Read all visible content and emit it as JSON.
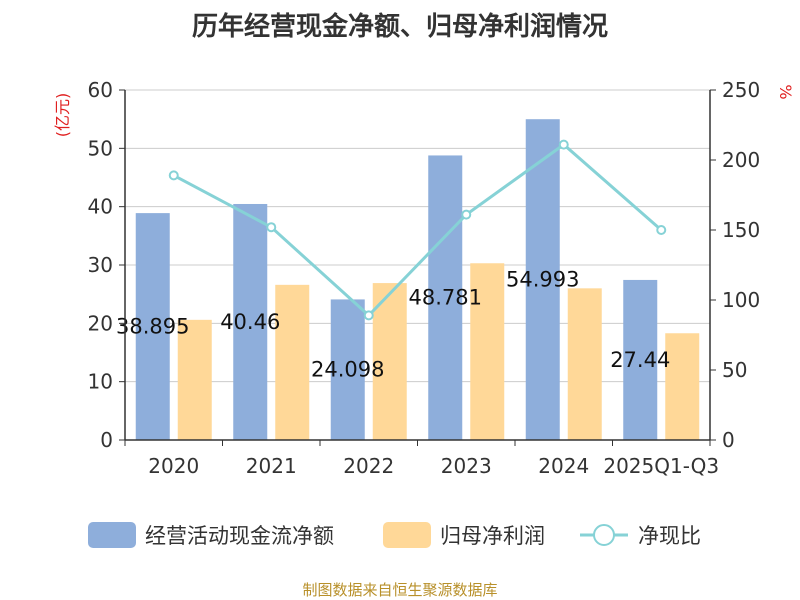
{
  "chart_data": {
    "type": "bar",
    "title": "历年经营现金净额、归母净利润情况",
    "categories": [
      "2020",
      "2021",
      "2022",
      "2023",
      "2024",
      "2025Q1-Q3"
    ],
    "left_unit": "(亿元)",
    "right_unit": "%",
    "ylim_left": [
      0,
      60
    ],
    "yticks_left": [
      "0",
      "10",
      "20",
      "30",
      "40",
      "50",
      "60"
    ],
    "ylim_right": [
      0,
      250
    ],
    "yticks_right": [
      "0",
      "50",
      "100",
      "150",
      "200",
      "250"
    ],
    "grid": true,
    "legend_position": "bottom",
    "series": [
      {
        "name": "经营活动现金流净额",
        "axis": "left",
        "type": "bar",
        "values": [
          38.895,
          40.46,
          24.098,
          48.781,
          54.993,
          27.44
        ],
        "labels": [
          "38.895",
          "40.46",
          "24.098",
          "48.781",
          "54.993",
          "27.44"
        ]
      },
      {
        "name": "归母净利润",
        "axis": "left",
        "type": "bar",
        "values": [
          20.6,
          26.6,
          26.9,
          30.3,
          26.0,
          18.3
        ]
      },
      {
        "name": "净现比",
        "axis": "right",
        "type": "line",
        "values": [
          189,
          152,
          89,
          161,
          211,
          150
        ]
      }
    ],
    "colors": {
      "bar1": "#8EAEDB",
      "bar2": "#FFD898",
      "line": "#86D2D6",
      "unit": "#E02020",
      "grid": "#CCCCCC",
      "axis": "#333333"
    },
    "source": "制图数据来自恒生聚源数据库",
    "source_color": "#B8902A"
  }
}
